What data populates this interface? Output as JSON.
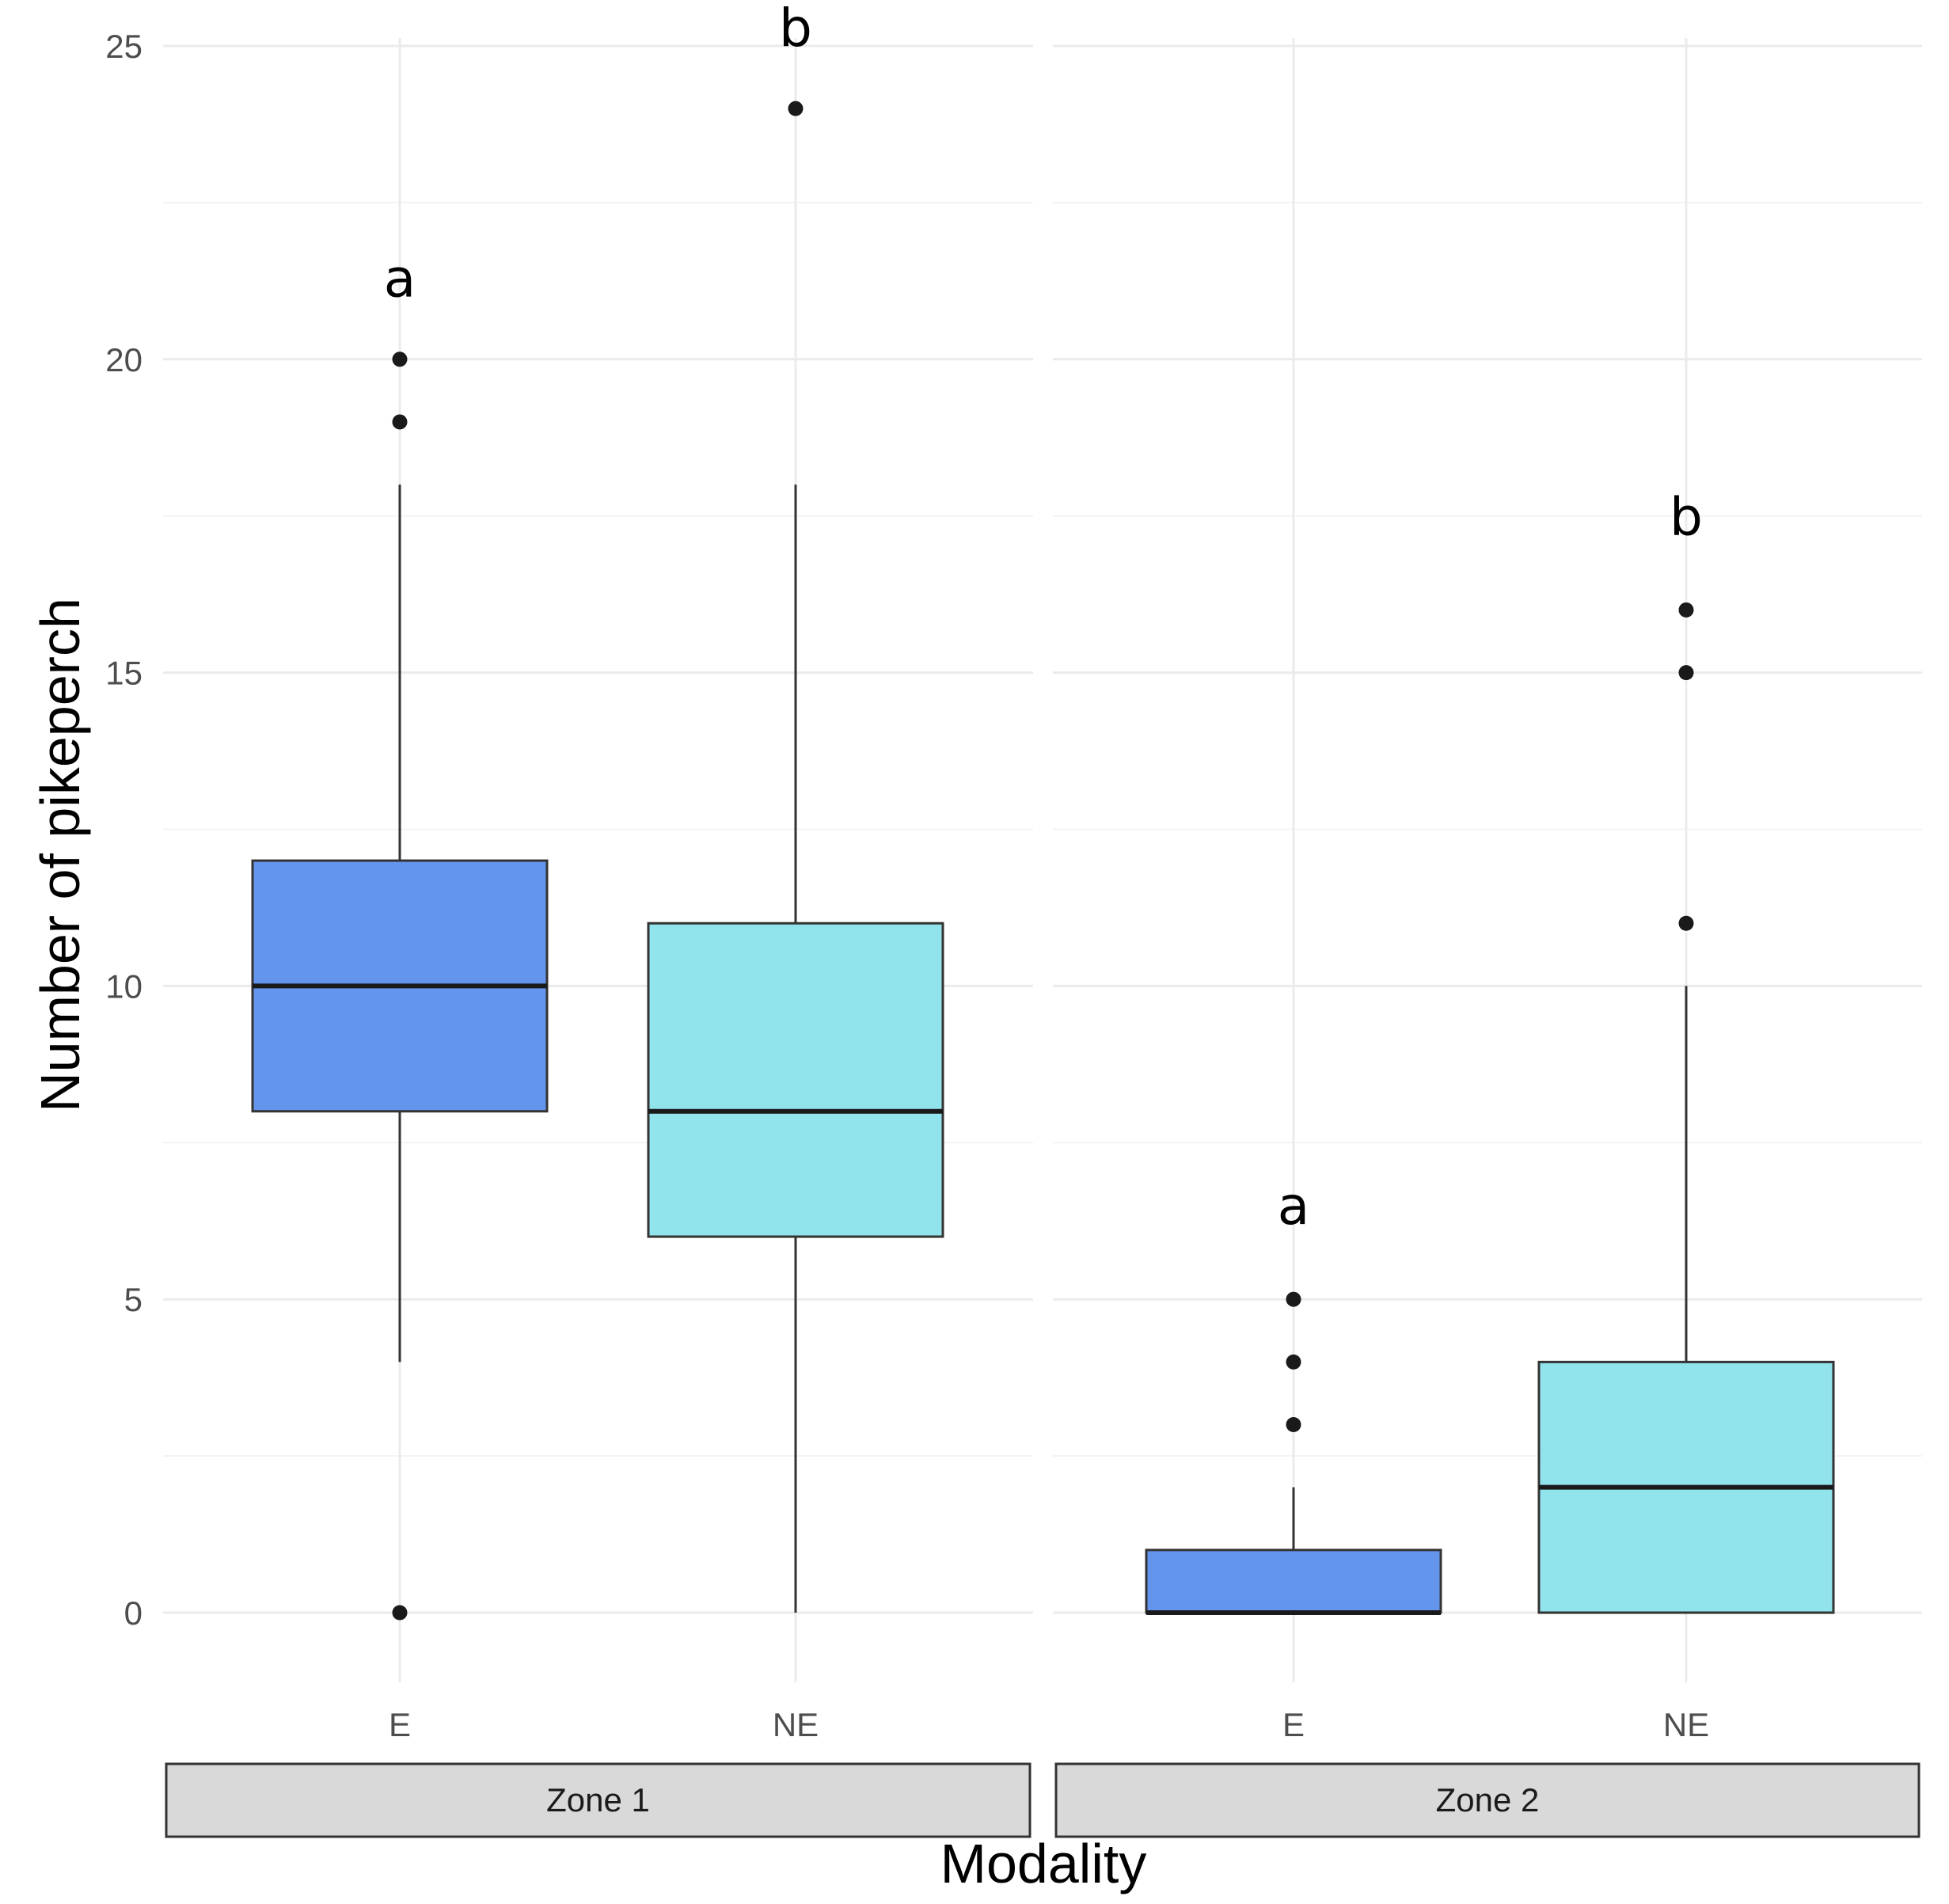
{
  "chart_data": {
    "type": "boxplot",
    "ylabel": "Number of pikeperch",
    "xlabel": "Modality",
    "ylim": [
      -1.2,
      25.7
    ],
    "y_ticks": [
      0,
      5,
      10,
      15,
      20,
      25
    ],
    "y_minor_ticks": [
      2.5,
      7.5,
      12.5,
      17.5,
      22.5
    ],
    "grid": true,
    "colors": {
      "E": "#6495ED",
      "NE": "#91E3EC"
    },
    "panels": [
      {
        "name": "Zone 1",
        "groups": [
          {
            "category": "E",
            "q1": 8,
            "median": 10,
            "q3": 12,
            "whisker_low": 4,
            "whisker_high": 18,
            "outliers": [
              0,
              19,
              20
            ],
            "letter": "a",
            "letter_y": 21
          },
          {
            "category": "NE",
            "q1": 6,
            "median": 8,
            "q3": 11,
            "whisker_low": 0,
            "whisker_high": 18,
            "outliers": [
              24
            ],
            "letter": "b",
            "letter_y": 25
          }
        ]
      },
      {
        "name": "Zone 2",
        "groups": [
          {
            "category": "E",
            "q1": 0,
            "median": 0,
            "q3": 1,
            "whisker_low": 0,
            "whisker_high": 2,
            "outliers": [
              3,
              4,
              5
            ],
            "letter": "a",
            "letter_y": 6.2
          },
          {
            "category": "NE",
            "q1": 0,
            "median": 2,
            "q3": 4,
            "whisker_low": 0,
            "whisker_high": 10,
            "outliers": [
              11,
              15,
              16
            ],
            "letter": "b",
            "letter_y": 17.2
          }
        ]
      }
    ]
  }
}
